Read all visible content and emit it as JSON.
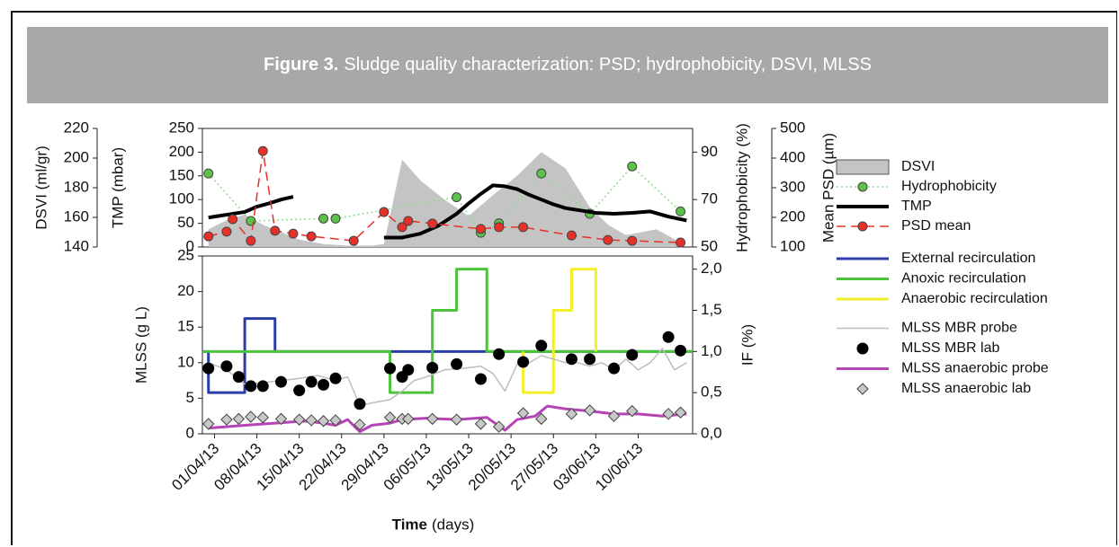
{
  "figure": {
    "label": "Figure 3.",
    "caption": "Sludge quality characterization: PSD; hydrophobicity, DSVI, MLSS"
  },
  "chart_data": [
    {
      "type": "line",
      "xlim": [
        "2013-03-30",
        "2013-06-19"
      ],
      "axes": [
        {
          "label": "DSVI (ml/gr)",
          "lim": [
            140,
            220
          ],
          "ticks": [
            140,
            160,
            180,
            200,
            220
          ]
        },
        {
          "label": "TMP (mbar)",
          "lim": [
            0,
            250
          ],
          "ticks": [
            0,
            50,
            100,
            150,
            200,
            250
          ]
        },
        {
          "label": "Hydrophobicity (%)",
          "lim": [
            50,
            100
          ],
          "ticks": [
            50,
            70,
            90
          ]
        },
        {
          "label": "Mean PSD (µm)",
          "lim": [
            100,
            500
          ],
          "ticks": [
            100,
            200,
            300,
            400,
            500
          ]
        }
      ],
      "series": [
        {
          "name": "DSVI",
          "kind": "area",
          "color": "#c4c4c4",
          "axis": 0,
          "x": [
            "2013-03-31",
            "2013-04-03",
            "2013-04-06",
            "2013-04-09",
            "2013-04-12",
            "2013-04-15",
            "2013-04-19",
            "2013-04-23",
            "2013-04-27",
            "2013-04-29",
            "2013-05-02",
            "2013-05-05",
            "2013-05-09",
            "2013-05-13",
            "2013-05-17",
            "2013-05-21",
            "2013-05-25",
            "2013-05-29",
            "2013-06-02",
            "2013-06-05",
            "2013-06-08",
            "2013-06-13",
            "2013-06-17"
          ],
          "values": [
            152,
            158,
            162,
            155,
            150,
            145,
            142,
            141,
            141,
            142,
            199,
            185,
            172,
            161,
            175,
            188,
            204,
            193,
            167,
            155,
            148,
            152,
            143
          ]
        },
        {
          "name": "Hydrophobicity",
          "kind": "line",
          "color": "#8fdc8f",
          "dash": "dotted",
          "width": 1.5,
          "marker": "circle",
          "marker_color": "#5cc24a",
          "axis": 2,
          "x": [
            "2013-03-31",
            "2013-04-07",
            "2013-04-19",
            "2013-04-21",
            "2013-05-11",
            "2013-05-15",
            "2013-05-18",
            "2013-05-25",
            "2013-06-02",
            "2013-06-09",
            "2013-06-17"
          ],
          "values": [
            81,
            61,
            62,
            62,
            71,
            56,
            60,
            81,
            64,
            84,
            65
          ]
        },
        {
          "name": "TMP",
          "kind": "line",
          "color": "#000000",
          "dash": "solid",
          "width": 4,
          "marker": "none",
          "axis": 1,
          "x": [
            "2013-03-31",
            "2013-04-02",
            "2013-04-04",
            "2013-04-06",
            "2013-04-08",
            "2013-04-10",
            "2013-04-12",
            "2013-04-14",
            null,
            "2013-04-29",
            "2013-05-02",
            "2013-05-05",
            "2013-05-08",
            "2013-05-11",
            "2013-05-13",
            "2013-05-15",
            "2013-05-17",
            "2013-05-19",
            "2013-05-21",
            "2013-05-23",
            "2013-05-25",
            "2013-05-27",
            "2013-05-29",
            "2013-05-31",
            "2013-06-03",
            "2013-06-06",
            "2013-06-09",
            "2013-06-12",
            "2013-06-15",
            "2013-06-18"
          ],
          "values": [
            62,
            66,
            70,
            74,
            85,
            92,
            100,
            106,
            null,
            20,
            20,
            28,
            45,
            70,
            92,
            112,
            130,
            128,
            122,
            110,
            100,
            90,
            82,
            78,
            72,
            70,
            72,
            75,
            64,
            56
          ]
        },
        {
          "name": "PSD mean",
          "kind": "line",
          "color": "#e8302a",
          "dash": "dashed",
          "width": 1.5,
          "marker": "circle",
          "marker_color": "#e8302a",
          "axis": 3,
          "x": [
            "2013-03-31",
            "2013-04-03",
            "2013-04-04",
            "2013-04-07",
            "2013-04-09",
            "2013-04-11",
            "2013-04-14",
            "2013-04-17",
            "2013-04-24",
            "2013-04-29",
            "2013-05-02",
            "2013-05-03",
            "2013-05-07",
            "2013-05-15",
            "2013-05-18",
            "2013-05-22",
            "2013-05-30",
            "2013-06-05",
            "2013-06-09",
            "2013-06-17"
          ],
          "values": [
            136,
            152,
            194,
            121,
            424,
            155,
            145,
            136,
            121,
            218,
            167,
            188,
            179,
            161,
            167,
            167,
            139,
            124,
            121,
            115
          ]
        }
      ]
    },
    {
      "type": "line",
      "xlim": [
        "2013-03-30",
        "2013-06-19"
      ],
      "x_label": "Time",
      "x_label_unit": "(days)",
      "xticks": [
        {
          "value": "2013-04-01",
          "label": "01/04/13"
        },
        {
          "value": "2013-04-08",
          "label": "08/04/13"
        },
        {
          "value": "2013-04-15",
          "label": "15/04/13"
        },
        {
          "value": "2013-04-22",
          "label": "22/04/13"
        },
        {
          "value": "2013-04-29",
          "label": "29/04/13"
        },
        {
          "value": "2013-05-06",
          "label": "06/05/13"
        },
        {
          "value": "2013-05-13",
          "label": "13/05/13"
        },
        {
          "value": "2013-05-20",
          "label": "20/05/13"
        },
        {
          "value": "2013-05-27",
          "label": "27/05/13"
        },
        {
          "value": "2013-06-03",
          "label": "03/06/13"
        },
        {
          "value": "2013-06-10",
          "label": "10/06/13"
        }
      ],
      "axes": [
        {
          "label": "MLSS (g L)",
          "lim": [
            0,
            25
          ],
          "ticks": [
            0,
            5,
            10,
            15,
            20,
            25
          ]
        },
        {
          "label": "IF (%)",
          "lim": [
            0,
            2.16
          ],
          "ticks": [
            {
              "value": 0,
              "label": "0,0"
            },
            {
              "value": 0.5,
              "label": "0,5"
            },
            {
              "value": 1,
              "label": "1,0"
            },
            {
              "value": 1.5,
              "label": "1,5"
            },
            {
              "value": 2,
              "label": "2,0"
            }
          ]
        }
      ],
      "series": [
        {
          "name": "External recirculation",
          "kind": "line",
          "color": "#2b3ea8",
          "dash": "solid",
          "width": 3,
          "marker": "none",
          "axis": 1,
          "x": [
            "2013-03-30",
            "2013-03-31",
            "2013-03-31",
            "2013-04-06",
            "2013-04-06",
            "2013-04-11",
            "2013-04-11",
            "2013-06-19"
          ],
          "values": [
            1,
            1,
            0.5,
            0.5,
            1.4,
            1.4,
            1,
            1
          ]
        },
        {
          "name": "Anoxic recirculation",
          "kind": "line",
          "color": "#4cc43a",
          "dash": "solid",
          "width": 3,
          "marker": "none",
          "axis": 1,
          "x": [
            "2013-03-30",
            "2013-04-30",
            "2013-04-30",
            "2013-05-07",
            "2013-05-07",
            "2013-05-11",
            "2013-05-11",
            "2013-05-16",
            "2013-05-16",
            "2013-06-19"
          ],
          "values": [
            1,
            1,
            0.5,
            0.5,
            1.5,
            1.5,
            2,
            2,
            1,
            1
          ]
        },
        {
          "name": "Anaerobic recirculation",
          "kind": "line",
          "color": "#f2ee2a",
          "dash": "solid",
          "width": 3,
          "marker": "none",
          "axis": 1,
          "x": [
            "2013-05-22",
            "2013-05-22",
            "2013-05-27",
            "2013-05-27",
            "2013-05-30",
            "2013-05-30",
            "2013-06-03",
            "2013-06-03"
          ],
          "values": [
            1,
            0.5,
            0.5,
            1.5,
            1.5,
            2,
            2,
            1
          ]
        },
        {
          "name": "MLSS MBR probe",
          "kind": "line",
          "color": "#bdbdbd",
          "dash": "solid",
          "width": 1.5,
          "marker": "none",
          "axis": 0,
          "x": [
            "2013-03-31",
            "2013-04-03",
            "2013-04-06",
            "2013-04-09",
            "2013-04-12",
            "2013-04-15",
            "2013-04-18",
            "2013-04-21",
            "2013-04-23",
            "2013-04-25",
            "2013-04-28",
            "2013-04-30",
            "2013-05-02",
            "2013-05-04",
            "2013-05-06",
            "2013-05-09",
            "2013-05-12",
            "2013-05-15",
            "2013-05-17",
            "2013-05-19",
            "2013-05-21",
            "2013-05-23",
            "2013-05-25",
            "2013-05-27",
            "2013-05-29",
            "2013-05-31",
            "2013-06-02",
            "2013-06-04",
            "2013-06-06",
            "2013-06-08",
            "2013-06-10",
            "2013-06-12",
            "2013-06-14",
            "2013-06-16",
            "2013-06-18"
          ],
          "values": [
            10,
            9,
            7,
            7.2,
            7.5,
            7.8,
            8.2,
            7.5,
            8,
            4,
            4.5,
            4.8,
            6,
            7.5,
            8,
            9,
            9.2,
            9.5,
            8.5,
            6,
            9.8,
            10,
            11,
            10.5,
            10,
            10,
            9.5,
            10,
            9,
            10.5,
            9,
            10,
            12,
            9,
            10
          ]
        },
        {
          "name": "MLSS MBR lab",
          "kind": "points",
          "color": "#000000",
          "marker": "circle",
          "marker_color": "#000000",
          "axis": 0,
          "x": [
            "2013-03-31",
            "2013-04-03",
            "2013-04-05",
            "2013-04-07",
            "2013-04-09",
            "2013-04-12",
            "2013-04-15",
            "2013-04-17",
            "2013-04-19",
            "2013-04-21",
            "2013-04-25",
            "2013-04-30",
            "2013-05-02",
            "2013-05-03",
            "2013-05-07",
            "2013-05-11",
            "2013-05-15",
            "2013-05-18",
            "2013-05-22",
            "2013-05-25",
            "2013-05-30",
            "2013-06-02",
            "2013-06-06",
            "2013-06-09",
            "2013-06-15",
            "2013-06-17"
          ],
          "values": [
            9.2,
            9.5,
            8,
            6.7,
            6.7,
            7.3,
            6.1,
            7.3,
            6.9,
            7.8,
            4.2,
            9.2,
            8,
            9,
            9.3,
            9.8,
            7.7,
            11.2,
            10.1,
            12.4,
            10.5,
            10.5,
            9.2,
            11.1,
            13.6,
            11.7
          ]
        },
        {
          "name": "MLSS anaerobic probe",
          "kind": "line",
          "color": "#b545b5",
          "dash": "solid",
          "width": 3,
          "marker": "none",
          "axis": 0,
          "x": [
            "2013-03-31",
            "2013-04-06",
            "2013-04-11",
            "2013-04-16",
            "2013-04-19",
            "2013-04-21",
            "2013-04-23",
            "2013-04-25",
            "2013-04-27",
            "2013-04-30",
            "2013-05-02",
            "2013-05-06",
            "2013-05-11",
            "2013-05-16",
            "2013-05-19",
            "2013-05-21",
            "2013-05-24",
            "2013-05-26",
            "2013-05-29",
            "2013-06-02",
            "2013-06-06",
            "2013-06-10",
            "2013-06-14",
            "2013-06-18"
          ],
          "values": [
            0.8,
            1.2,
            1.5,
            1.8,
            1.5,
            1.2,
            2,
            0.3,
            1.2,
            1.5,
            2,
            2.2,
            2,
            2.3,
            0.5,
            2,
            2.5,
            3.9,
            3.5,
            3.2,
            2.8,
            2.8,
            2.5,
            2.8
          ]
        },
        {
          "name": "MLSS anaerobic lab",
          "kind": "points",
          "color": "#c8c8c8",
          "marker": "diamond",
          "marker_color": "#c8c8c8",
          "axis": 0,
          "x": [
            "2013-03-31",
            "2013-04-03",
            "2013-04-05",
            "2013-04-07",
            "2013-04-09",
            "2013-04-12",
            "2013-04-15",
            "2013-04-17",
            "2013-04-19",
            "2013-04-21",
            "2013-04-25",
            "2013-04-30",
            "2013-05-02",
            "2013-05-03",
            "2013-05-07",
            "2013-05-11",
            "2013-05-15",
            "2013-05-18",
            "2013-05-22",
            "2013-05-25",
            "2013-05-30",
            "2013-06-02",
            "2013-06-06",
            "2013-06-09",
            "2013-06-15",
            "2013-06-17"
          ],
          "values": [
            1.4,
            2,
            2.1,
            2.4,
            2.3,
            2.1,
            2,
            1.9,
            1.8,
            1.9,
            1.3,
            2.3,
            2.1,
            2.1,
            2.1,
            2,
            1.4,
            1,
            2.9,
            2.1,
            2.8,
            3.3,
            2.5,
            3.2,
            2.8,
            3
          ]
        }
      ]
    }
  ]
}
